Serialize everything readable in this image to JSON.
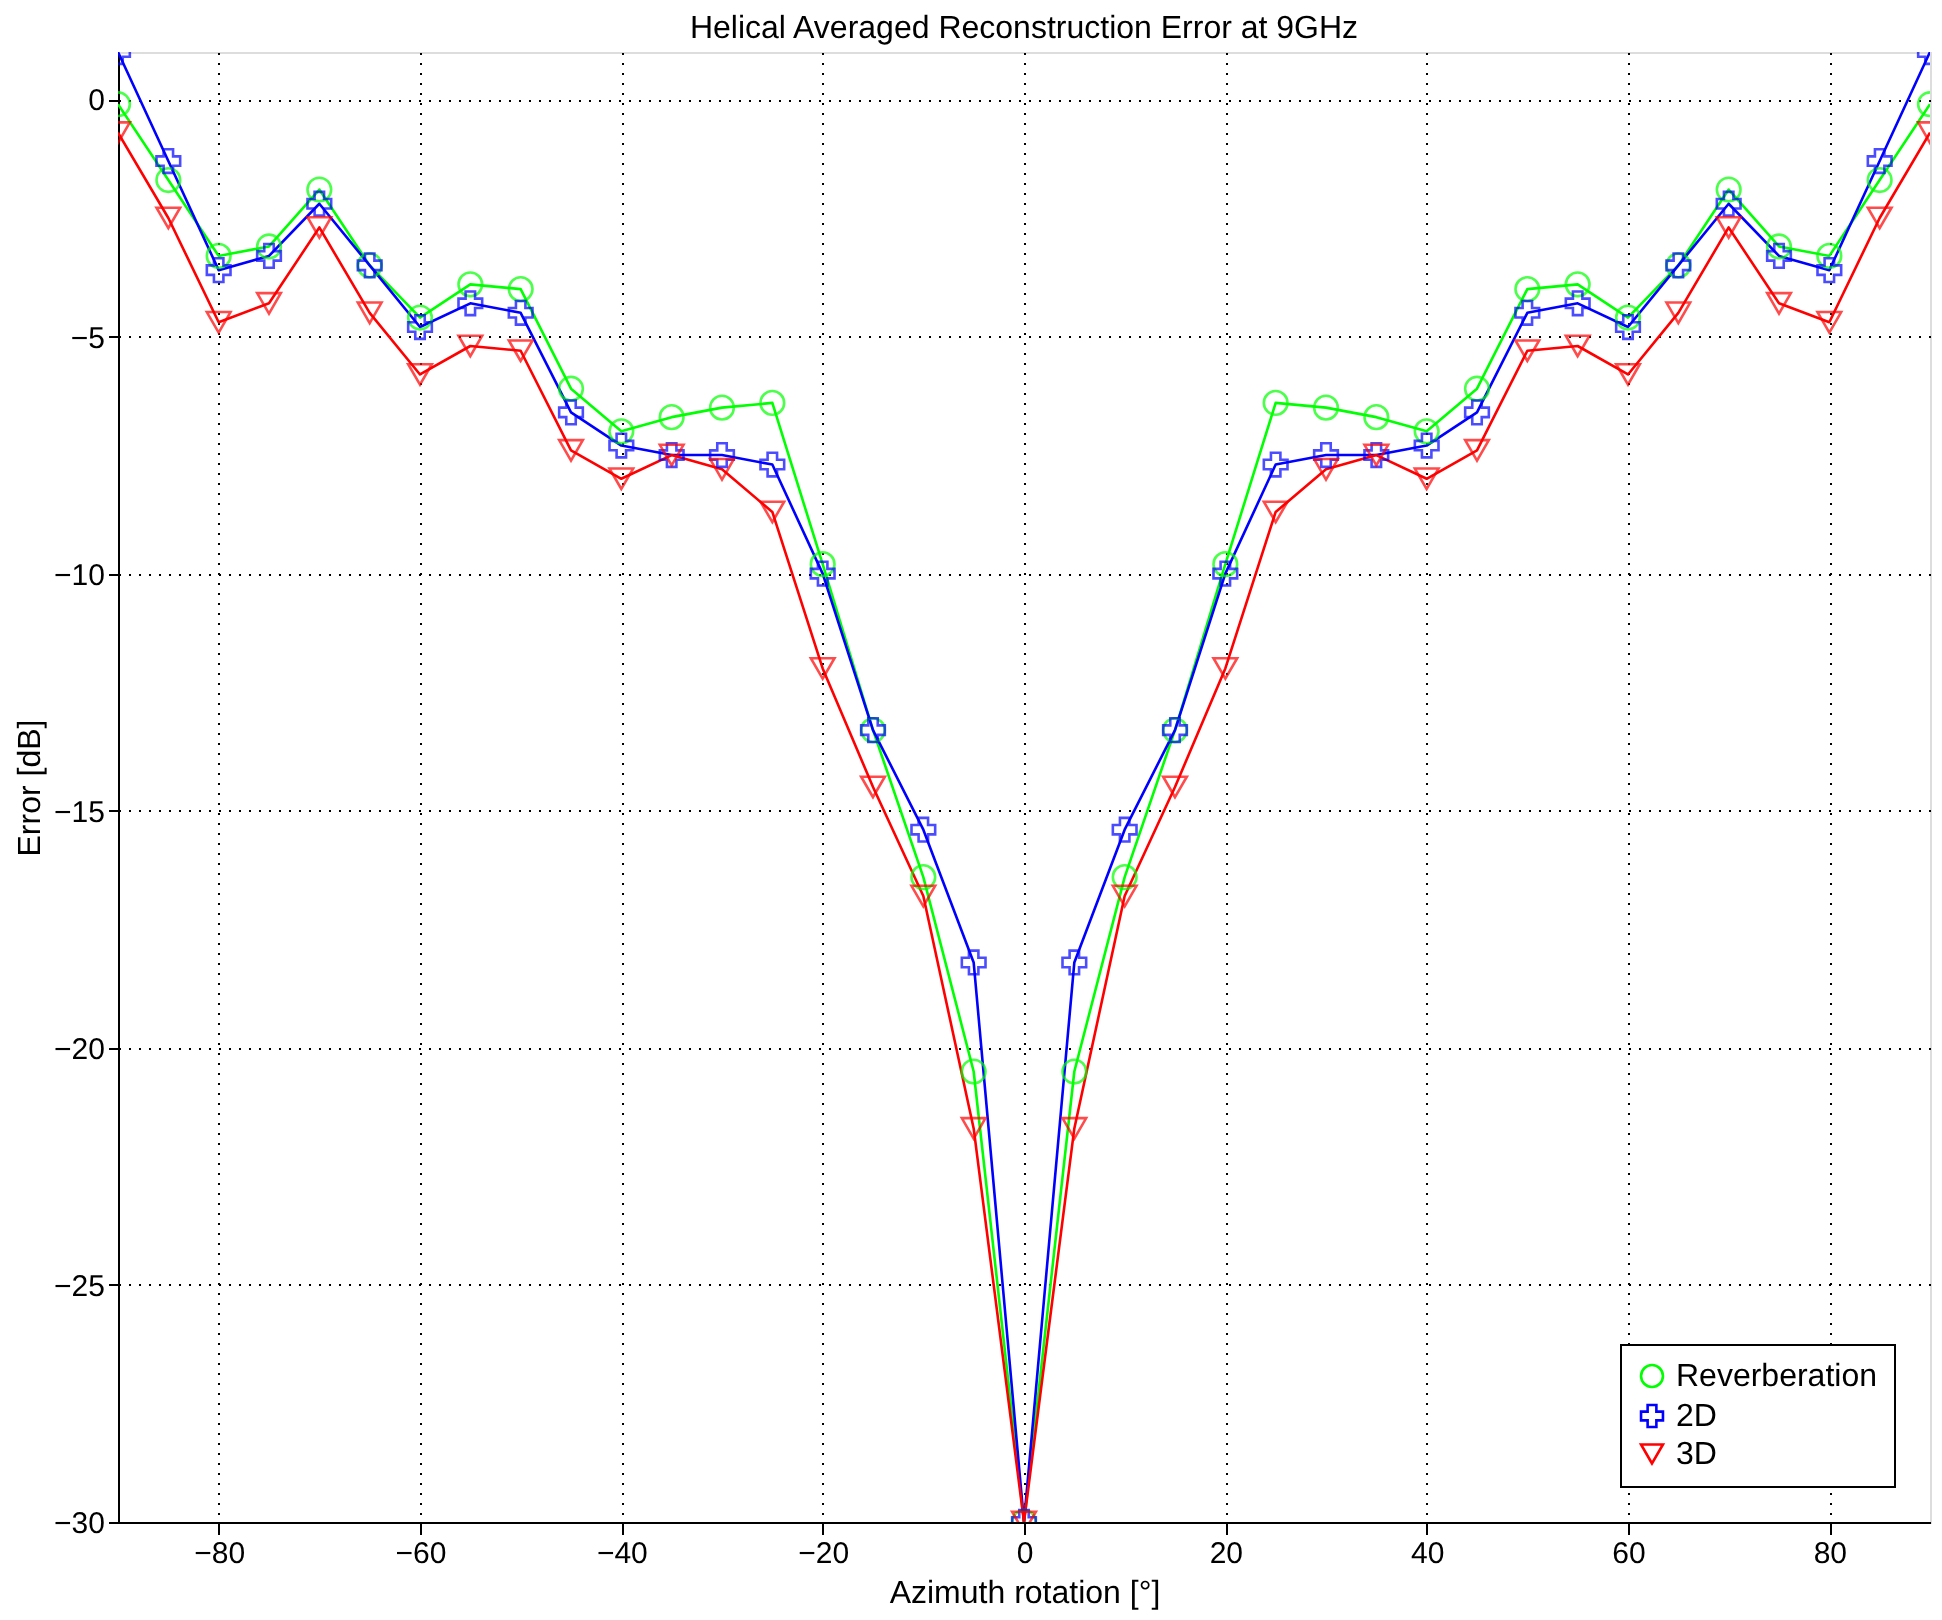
{
  "chart_data": {
    "type": "line",
    "title": "Helical Averaged Reconstruction Error at 9GHz",
    "xlabel": "Azimuth rotation [°]",
    "ylabel": "Error [dB]",
    "x": [
      -90,
      -85,
      -80,
      -75,
      -70,
      -65,
      -60,
      -55,
      -50,
      -45,
      -40,
      -35,
      -30,
      -25,
      -20,
      -15,
      -10,
      -5,
      0,
      5,
      10,
      15,
      20,
      25,
      30,
      35,
      40,
      45,
      50,
      55,
      60,
      65,
      70,
      75,
      80,
      85,
      90
    ],
    "series": [
      {
        "name": "Reverberation",
        "color": "#00ff00",
        "marker": "circle",
        "values": [
          -0.1,
          -1.7,
          -3.3,
          -3.1,
          -1.9,
          -3.5,
          -4.6,
          -3.9,
          -4.0,
          -6.1,
          -7.0,
          -6.7,
          -6.5,
          -6.4,
          -9.8,
          -13.3,
          -16.4,
          -20.5,
          -30,
          -20.5,
          -16.4,
          -13.3,
          -9.8,
          -6.4,
          -6.5,
          -6.7,
          -7.0,
          -6.1,
          -4.0,
          -3.9,
          -4.6,
          -3.5,
          -1.9,
          -3.1,
          -3.3,
          -1.7,
          -0.1
        ]
      },
      {
        "name": "2D",
        "color": "#0000ff",
        "marker": "cross",
        "values": [
          1.0,
          -1.3,
          -3.6,
          -3.3,
          -2.2,
          -3.5,
          -4.8,
          -4.3,
          -4.5,
          -6.6,
          -7.3,
          -7.5,
          -7.5,
          -7.7,
          -10.0,
          -13.3,
          -15.4,
          -18.2,
          -30,
          -18.2,
          -15.4,
          -13.3,
          -10.0,
          -7.7,
          -7.5,
          -7.5,
          -7.3,
          -6.6,
          -4.5,
          -4.3,
          -4.8,
          -3.5,
          -2.2,
          -3.3,
          -3.6,
          -1.3,
          1.0
        ]
      },
      {
        "name": "3D",
        "color": "#ff0000",
        "marker": "triangle",
        "values": [
          -0.7,
          -2.5,
          -4.7,
          -4.3,
          -2.7,
          -4.5,
          -5.8,
          -5.2,
          -5.3,
          -7.4,
          -8.0,
          -7.5,
          -7.8,
          -8.7,
          -12.0,
          -14.5,
          -16.8,
          -21.7,
          -30,
          -21.7,
          -16.8,
          -14.5,
          -12.0,
          -8.7,
          -7.8,
          -7.5,
          -8.0,
          -7.4,
          -5.3,
          -5.2,
          -5.8,
          -4.5,
          -2.7,
          -4.3,
          -4.7,
          -2.5,
          -0.7
        ]
      }
    ],
    "xlim": [
      -90,
      90
    ],
    "ylim": [
      -30,
      1
    ],
    "xticks": [
      -80,
      -60,
      -40,
      -20,
      0,
      20,
      40,
      60,
      80
    ],
    "yticks": [
      -30,
      -25,
      -20,
      -15,
      -10,
      -5,
      0
    ],
    "grid": true,
    "legend": "bottom right",
    "line_style": "solid"
  }
}
